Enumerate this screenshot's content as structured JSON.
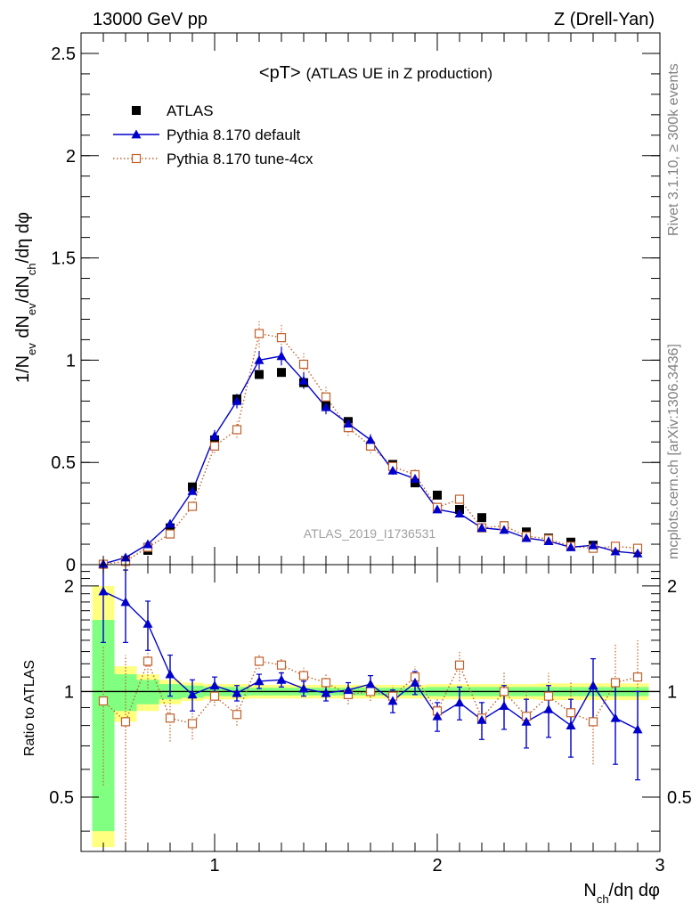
{
  "header": {
    "left": "13000 GeV pp",
    "right": "Z (Drell-Yan)"
  },
  "side_text": {
    "top": "Rivet 3.1.10, ≥ 300k events",
    "bottom": "mcplots.cern.ch [arXiv:1306.3436]"
  },
  "colors": {
    "atlas": "#000000",
    "default": "#0000cc",
    "tune4cx": "#c0602a",
    "band_inner": "#80ff80",
    "band_outer": "#ffff80"
  },
  "chart_data": [
    {
      "type": "scatter",
      "panel": "main",
      "title": "<pT>",
      "title_note": "(ATLAS UE in Z production)",
      "annotation": "ATLAS_2019_I1736531",
      "xlabel": "N_ch/dη dφ",
      "ylabel": "1/N_ev dN_ev/dN_ch/dη dφ",
      "xlim": [
        0.4,
        3.0
      ],
      "ylim": [
        0,
        2.6
      ],
      "xticks": [
        1,
        2,
        3
      ],
      "yticks": [
        "0",
        "0.5",
        "1",
        "1.5",
        "2",
        "2.5"
      ],
      "legend_position": "top-left",
      "x": [
        0.5,
        0.6,
        0.7,
        0.8,
        0.9,
        1.0,
        1.1,
        1.2,
        1.3,
        1.4,
        1.5,
        1.6,
        1.7,
        1.8,
        1.9,
        2.0,
        2.1,
        2.2,
        2.3,
        2.4,
        2.5,
        2.6,
        2.7,
        2.8,
        2.9
      ],
      "series": [
        {
          "name": "ATLAS",
          "style": "marker",
          "values": [
            0.002,
            0.02,
            0.07,
            0.18,
            0.38,
            0.61,
            0.81,
            0.93,
            0.94,
            0.89,
            0.78,
            0.7,
            0.58,
            0.49,
            0.4,
            0.34,
            0.27,
            0.23,
            0.19,
            0.16,
            0.13,
            0.11,
            0.095,
            0.085,
            0.075
          ]
        },
        {
          "name": "Pythia 8.170 default",
          "style": "line",
          "values": [
            0.004,
            0.035,
            0.1,
            0.2,
            0.36,
            0.63,
            0.8,
            1.0,
            1.02,
            0.9,
            0.77,
            0.69,
            0.61,
            0.46,
            0.42,
            0.27,
            0.25,
            0.18,
            0.17,
            0.13,
            0.115,
            0.085,
            0.095,
            0.065,
            0.055
          ]
        },
        {
          "name": "Pythia 8.170 tune-4cx",
          "style": "dotted",
          "values": [
            0.002,
            0.016,
            0.085,
            0.15,
            0.285,
            0.58,
            0.66,
            1.13,
            1.11,
            0.98,
            0.82,
            0.67,
            0.58,
            0.48,
            0.44,
            0.28,
            0.32,
            0.18,
            0.19,
            0.14,
            0.125,
            0.09,
            0.08,
            0.09,
            0.08
          ]
        }
      ]
    },
    {
      "type": "scatter",
      "panel": "ratio",
      "ylabel": "Ratio to ATLAS",
      "xlim": [
        0.4,
        3.0
      ],
      "ylim": [
        0.35,
        2.3
      ],
      "xticks": [
        1,
        2,
        3
      ],
      "yticks": [
        "0.5",
        "1",
        "2"
      ],
      "x": [
        0.5,
        0.6,
        0.7,
        0.8,
        0.9,
        1.0,
        1.1,
        1.2,
        1.3,
        1.4,
        1.5,
        1.6,
        1.7,
        1.8,
        1.9,
        2.0,
        2.1,
        2.2,
        2.3,
        2.4,
        2.5,
        2.6,
        2.7,
        2.8,
        2.9
      ],
      "series": [
        {
          "name": "Pythia 8.170 default",
          "values": [
            1.93,
            1.8,
            1.56,
            1.12,
            0.98,
            1.04,
            0.99,
            1.07,
            1.08,
            1.02,
            0.99,
            1.01,
            1.05,
            0.94,
            1.06,
            0.85,
            0.93,
            0.83,
            0.91,
            0.82,
            0.89,
            0.8,
            1.04,
            0.84,
            0.78
          ],
          "errors": [
            0.55,
            0.42,
            0.25,
            0.15,
            0.1,
            0.06,
            0.05,
            0.05,
            0.05,
            0.05,
            0.05,
            0.05,
            0.06,
            0.07,
            0.08,
            0.08,
            0.1,
            0.1,
            0.13,
            0.13,
            0.15,
            0.15,
            0.2,
            0.22,
            0.22
          ]
        },
        {
          "name": "Pythia 8.170 tune-4cx",
          "values": [
            0.94,
            0.82,
            1.22,
            0.84,
            0.81,
            0.97,
            0.86,
            1.22,
            1.19,
            1.11,
            1.06,
            0.98,
            1.0,
            0.97,
            1.1,
            0.88,
            1.19,
            0.84,
            1.0,
            0.85,
            0.97,
            0.87,
            0.82,
            1.06,
            1.1
          ],
          "errors": [
            0.4,
            0.45,
            0.2,
            0.12,
            0.08,
            0.06,
            0.06,
            0.06,
            0.06,
            0.06,
            0.06,
            0.06,
            0.06,
            0.07,
            0.08,
            0.08,
            0.12,
            0.1,
            0.14,
            0.15,
            0.16,
            0.2,
            0.2,
            0.3,
            0.3
          ]
        }
      ],
      "bands": {
        "edges": [
          0.45,
          0.55,
          0.65,
          0.75,
          0.85,
          0.95,
          1.05,
          1.15,
          1.25,
          1.35,
          1.45,
          1.55,
          1.65,
          1.75,
          1.85,
          1.95,
          2.05,
          2.15,
          2.25,
          2.35,
          2.45,
          2.55,
          2.65,
          2.75,
          2.85,
          2.95
        ],
        "inner": [
          0.6,
          0.12,
          0.08,
          0.05,
          0.04,
          0.03,
          0.03,
          0.025,
          0.025,
          0.025,
          0.025,
          0.025,
          0.025,
          0.025,
          0.025,
          0.03,
          0.03,
          0.03,
          0.03,
          0.03,
          0.03,
          0.03,
          0.03,
          0.03,
          0.03
        ],
        "outer": [
          1.0,
          0.18,
          0.12,
          0.08,
          0.06,
          0.05,
          0.05,
          0.045,
          0.045,
          0.045,
          0.045,
          0.045,
          0.045,
          0.045,
          0.045,
          0.05,
          0.05,
          0.05,
          0.05,
          0.05,
          0.055,
          0.055,
          0.055,
          0.055,
          0.055
        ]
      }
    }
  ]
}
